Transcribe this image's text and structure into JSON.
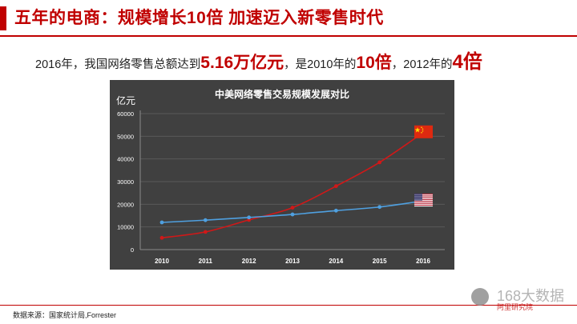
{
  "header": {
    "title": "五年的电商：规模增长10倍 加速迈入新零售时代"
  },
  "summary": {
    "prefix": "2016年，我国网络零售总额达到",
    "highlight1": "5.16万亿元",
    "middle1": "，是2010年的",
    "highlight2": "10倍",
    "middle2": "，2012年的",
    "highlight3": "4倍"
  },
  "chart_data": {
    "type": "line",
    "title": "中美网络零售交易规模发展对比",
    "ylabel": "亿元",
    "xlabel": "",
    "categories": [
      "2010",
      "2011",
      "2012",
      "2013",
      "2014",
      "2015",
      "2016"
    ],
    "ylim": [
      0,
      60000
    ],
    "yticks": [
      "0",
      "10000",
      "20000",
      "30000",
      "40000",
      "50000",
      "60000"
    ],
    "grid": true,
    "series": [
      {
        "values": [
          5200,
          7800,
          13100,
          18500,
          28000,
          38500,
          51600
        ],
        "color": "#d01818",
        "marker_flag": "china-flag-icon"
      },
      {
        "values": [
          12000,
          13000,
          14200,
          15500,
          17200,
          18800,
          21500
        ],
        "color": "#4fa0e0",
        "marker_flag": "usa-flag-icon"
      }
    ]
  },
  "footer": {
    "source": "数据来源：国家统计局,Forrester"
  },
  "watermark": {
    "text": "168大数据",
    "sub": "阿里研究院"
  },
  "colors": {
    "accent": "#c00000",
    "panel": "#404040"
  }
}
